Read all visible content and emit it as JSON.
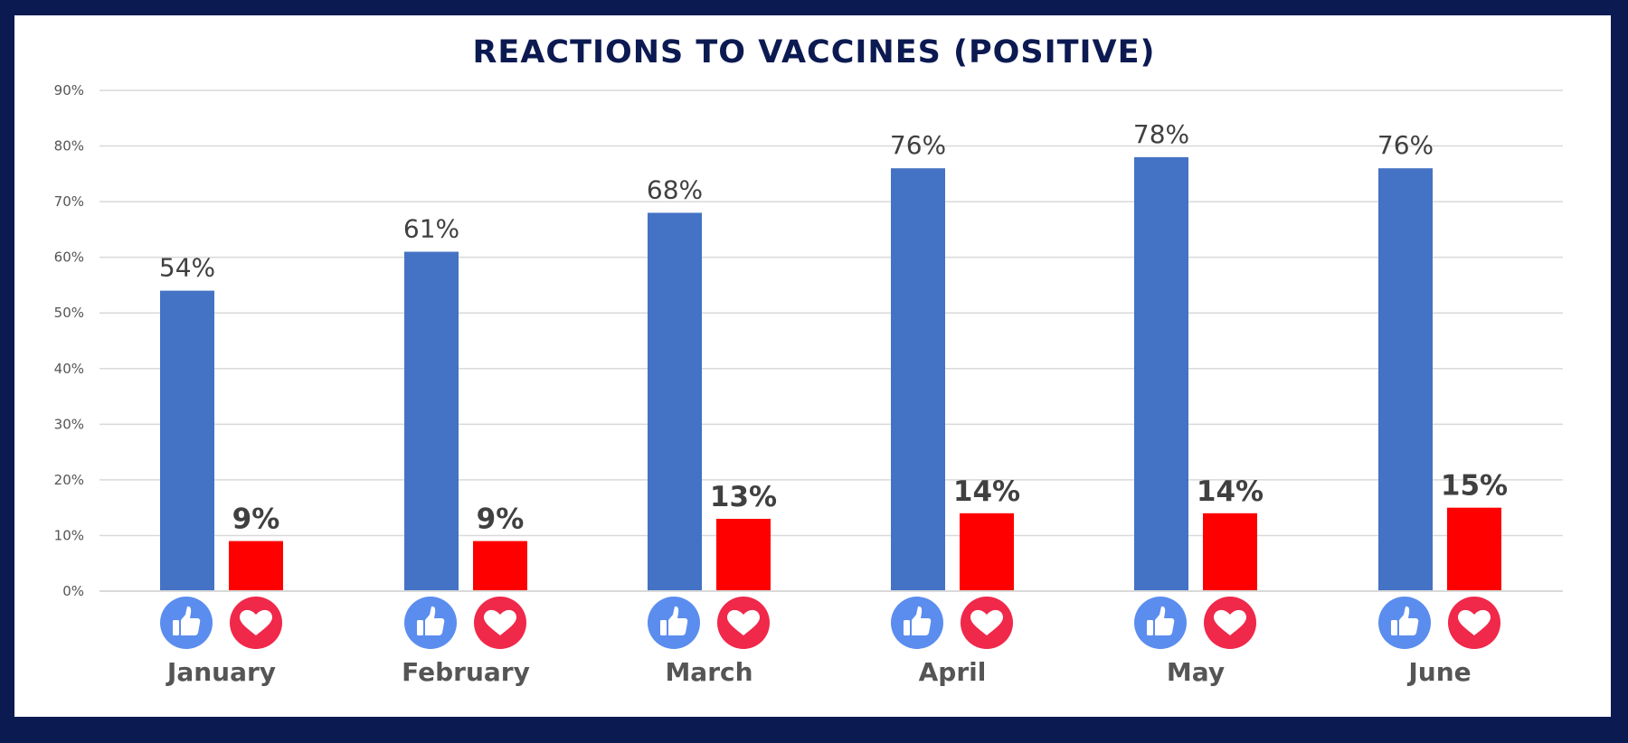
{
  "colors": {
    "frame": "#0c1a52",
    "like": "#4472c4",
    "love": "#ff0000",
    "like_icon": "#5b8def",
    "love_icon": "#f0284a",
    "grid": "#d9d9d9"
  },
  "icons": {
    "like": "thumbs-up-icon",
    "love": "heart-icon"
  },
  "chart_data": {
    "type": "bar",
    "title": "REACTIONS TO VACCINES (POSITIVE)",
    "categories": [
      "January",
      "February",
      "March",
      "April",
      "May",
      "June"
    ],
    "series": [
      {
        "key": "like",
        "values": [
          54,
          61,
          68,
          76,
          78,
          76
        ],
        "data_labels": [
          "54%",
          "61%",
          "68%",
          "76%",
          "78%",
          "76%"
        ]
      },
      {
        "key": "love",
        "values": [
          9,
          9,
          13,
          14,
          14,
          15
        ],
        "data_labels": [
          "9%",
          "9%",
          "13%",
          "14%",
          "14%",
          "15%"
        ]
      }
    ],
    "ylim": [
      0,
      90
    ],
    "yticks": [
      "0%",
      "10%",
      "20%",
      "30%",
      "40%",
      "50%",
      "60%",
      "70%",
      "80%",
      "90%"
    ],
    "grid": true,
    "legend": "icons below bars"
  }
}
